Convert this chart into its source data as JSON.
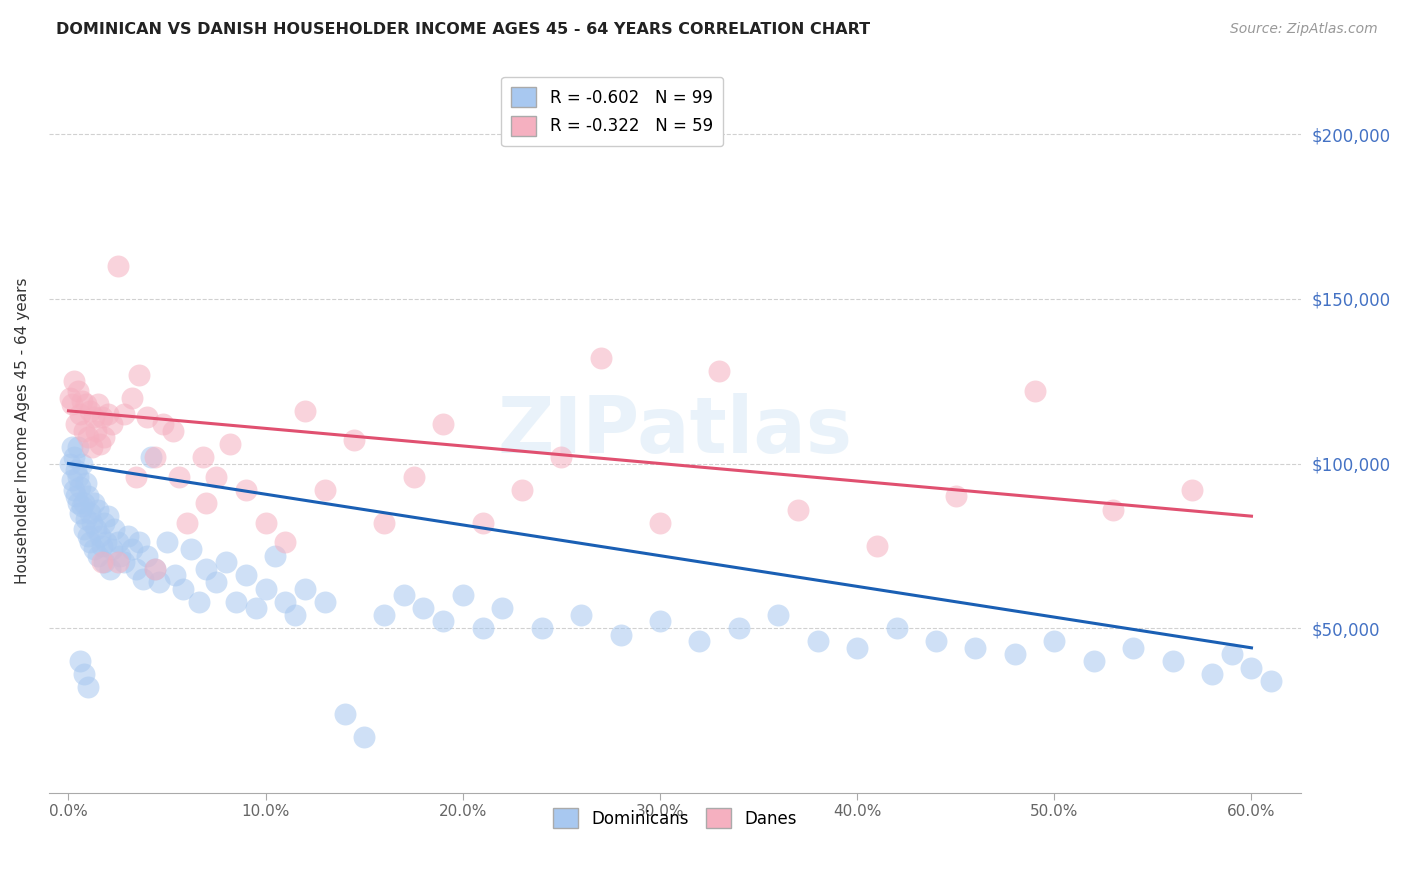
{
  "title": "DOMINICAN VS DANISH HOUSEHOLDER INCOME AGES 45 - 64 YEARS CORRELATION CHART",
  "source": "Source: ZipAtlas.com",
  "ylabel": "Householder Income Ages 45 - 64 years",
  "xlabel_ticks": [
    "0.0%",
    "10.0%",
    "20.0%",
    "30.0%",
    "40.0%",
    "50.0%",
    "60.0%"
  ],
  "xlabel_vals": [
    0.0,
    0.1,
    0.2,
    0.3,
    0.4,
    0.5,
    0.6
  ],
  "ytick_labels": [
    "$50,000",
    "$100,000",
    "$150,000",
    "$200,000"
  ],
  "ytick_vals": [
    50000,
    100000,
    150000,
    200000
  ],
  "ylim": [
    0,
    220000
  ],
  "xlim": [
    -0.01,
    0.625
  ],
  "legend1_label": "R = -0.602   N = 99",
  "legend2_label": "R = -0.322   N = 59",
  "dominicans_color": "#a8c8f0",
  "danes_color": "#f5b0c0",
  "dominicans_line_color": "#1a5fb4",
  "danes_line_color": "#e05070",
  "watermark": "ZIPatlas",
  "dom_line_x0": 0.0,
  "dom_line_y0": 100000,
  "dom_line_x1": 0.6,
  "dom_line_y1": 44000,
  "dane_line_x0": 0.0,
  "dane_line_y0": 116000,
  "dane_line_x1": 0.6,
  "dane_line_y1": 84000,
  "dominicans_x": [
    0.001,
    0.002,
    0.002,
    0.003,
    0.003,
    0.004,
    0.004,
    0.005,
    0.005,
    0.005,
    0.006,
    0.006,
    0.007,
    0.007,
    0.008,
    0.008,
    0.009,
    0.009,
    0.01,
    0.01,
    0.011,
    0.011,
    0.012,
    0.013,
    0.013,
    0.014,
    0.015,
    0.015,
    0.016,
    0.017,
    0.018,
    0.018,
    0.019,
    0.02,
    0.021,
    0.022,
    0.023,
    0.025,
    0.026,
    0.028,
    0.03,
    0.032,
    0.034,
    0.036,
    0.038,
    0.04,
    0.042,
    0.044,
    0.046,
    0.05,
    0.054,
    0.058,
    0.062,
    0.066,
    0.07,
    0.075,
    0.08,
    0.085,
    0.09,
    0.095,
    0.1,
    0.105,
    0.11,
    0.115,
    0.12,
    0.13,
    0.14,
    0.15,
    0.16,
    0.17,
    0.18,
    0.19,
    0.2,
    0.21,
    0.22,
    0.24,
    0.26,
    0.28,
    0.3,
    0.32,
    0.34,
    0.36,
    0.38,
    0.4,
    0.42,
    0.44,
    0.46,
    0.48,
    0.5,
    0.52,
    0.54,
    0.56,
    0.58,
    0.59,
    0.6,
    0.61,
    0.006,
    0.008,
    0.01
  ],
  "dominicans_y": [
    100000,
    105000,
    95000,
    102000,
    92000,
    98000,
    90000,
    105000,
    88000,
    96000,
    93000,
    85000,
    100000,
    87000,
    88000,
    80000,
    94000,
    83000,
    78000,
    90000,
    85000,
    76000,
    82000,
    88000,
    74000,
    80000,
    86000,
    72000,
    78000,
    75000,
    82000,
    70000,
    76000,
    84000,
    68000,
    74000,
    80000,
    76000,
    72000,
    70000,
    78000,
    74000,
    68000,
    76000,
    65000,
    72000,
    102000,
    68000,
    64000,
    76000,
    66000,
    62000,
    74000,
    58000,
    68000,
    64000,
    70000,
    58000,
    66000,
    56000,
    62000,
    72000,
    58000,
    54000,
    62000,
    58000,
    24000,
    17000,
    54000,
    60000,
    56000,
    52000,
    60000,
    50000,
    56000,
    50000,
    54000,
    48000,
    52000,
    46000,
    50000,
    54000,
    46000,
    44000,
    50000,
    46000,
    44000,
    42000,
    46000,
    40000,
    44000,
    40000,
    36000,
    42000,
    38000,
    34000,
    40000,
    36000,
    32000
  ],
  "danes_x": [
    0.001,
    0.002,
    0.003,
    0.004,
    0.005,
    0.006,
    0.007,
    0.008,
    0.009,
    0.01,
    0.011,
    0.012,
    0.013,
    0.014,
    0.015,
    0.016,
    0.017,
    0.018,
    0.02,
    0.022,
    0.025,
    0.028,
    0.032,
    0.036,
    0.04,
    0.044,
    0.048,
    0.053,
    0.06,
    0.068,
    0.075,
    0.082,
    0.09,
    0.1,
    0.11,
    0.12,
    0.13,
    0.145,
    0.16,
    0.175,
    0.19,
    0.21,
    0.23,
    0.25,
    0.27,
    0.3,
    0.33,
    0.37,
    0.41,
    0.45,
    0.49,
    0.53,
    0.57,
    0.017,
    0.025,
    0.034,
    0.044,
    0.056,
    0.07
  ],
  "danes_y": [
    120000,
    118000,
    125000,
    112000,
    122000,
    115000,
    119000,
    110000,
    118000,
    108000,
    116000,
    105000,
    114000,
    110000,
    118000,
    106000,
    114000,
    108000,
    115000,
    112000,
    160000,
    115000,
    120000,
    127000,
    114000,
    102000,
    112000,
    110000,
    82000,
    102000,
    96000,
    106000,
    92000,
    82000,
    76000,
    116000,
    92000,
    107000,
    82000,
    96000,
    112000,
    82000,
    92000,
    102000,
    132000,
    82000,
    128000,
    86000,
    75000,
    90000,
    122000,
    86000,
    92000,
    70000,
    70000,
    96000,
    68000,
    96000,
    88000
  ]
}
